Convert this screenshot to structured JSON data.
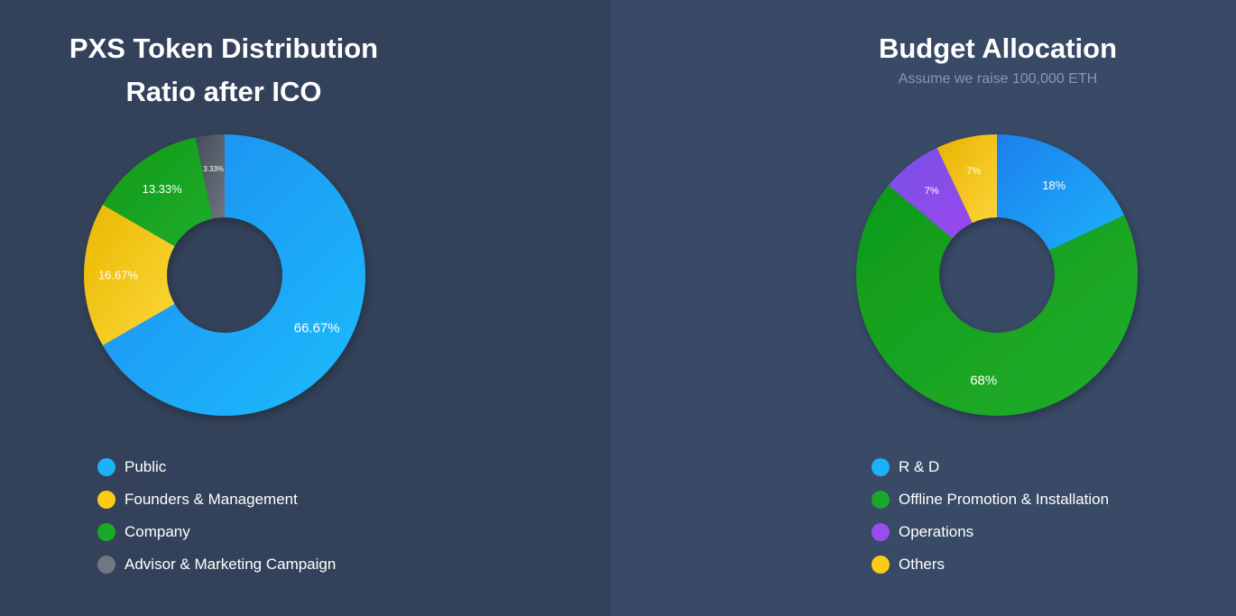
{
  "chart_data": [
    {
      "type": "pie",
      "title": "PXS Token Distribution Ratio after ICO",
      "title_lines": [
        "PXS Token Distribution",
        "Ratio after ICO"
      ],
      "subtitle": "",
      "categories": [
        "Public",
        "Founders & Management",
        "Company",
        "Advisor & Marketing Campaign"
      ],
      "values": [
        66.67,
        16.67,
        13.33,
        3.33
      ],
      "labels": [
        "66.67%",
        "16.67%",
        "13.33%",
        "3.33%"
      ],
      "colors": [
        [
          "#1b8af0",
          "#1ebdfc"
        ],
        [
          "#e9b800",
          "#fcd83a"
        ],
        [
          "#0d9a18",
          "#22ad2a"
        ],
        [
          "#454d58",
          "#6d7480"
        ]
      ],
      "legend_colors": [
        "#1cb1f8",
        "#fccc14",
        "#19a828",
        "#717680"
      ],
      "legend_position": "bottom",
      "donut": true
    },
    {
      "type": "pie",
      "title": "Budget Allocation",
      "title_lines": [
        "Budget Allocation"
      ],
      "subtitle": "Assume we raise 100,000 ETH",
      "categories": [
        "R & D",
        "Offline Promotion & Installation",
        "Operations",
        "Others"
      ],
      "values": [
        18,
        68,
        7,
        7
      ],
      "labels": [
        "18%",
        "68%",
        "7%",
        "7%"
      ],
      "colors": [
        [
          "#1a80ee",
          "#1db1fa"
        ],
        [
          "#0d9a18",
          "#23ae2b"
        ],
        [
          "#7751e4",
          "#9a49ef"
        ],
        [
          "#e8b400",
          "#fcd33a"
        ]
      ],
      "legend_colors": [
        "#1cb1f8",
        "#19a828",
        "#9a4cf0",
        "#fccc14"
      ],
      "legend_position": "bottom",
      "donut": true
    }
  ]
}
